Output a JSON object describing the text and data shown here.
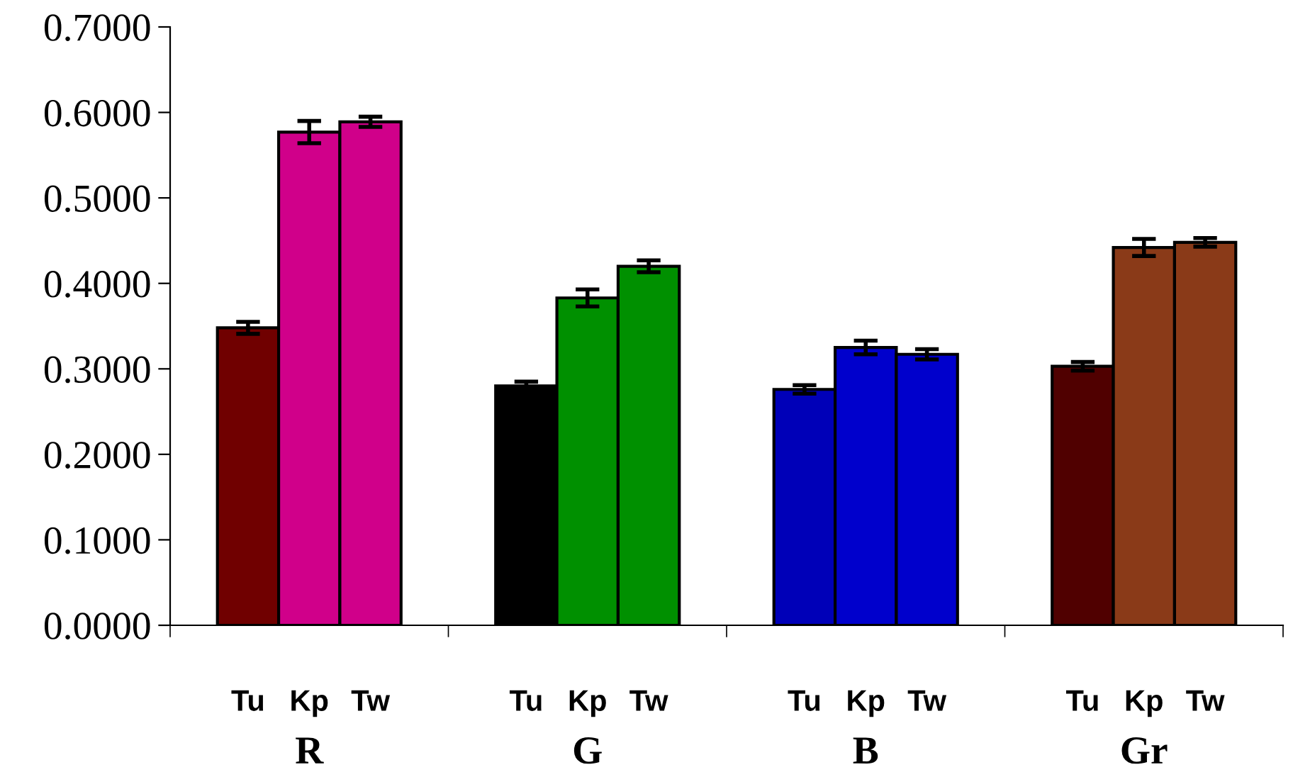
{
  "chart_data": {
    "type": "bar",
    "categories": [
      "R",
      "G",
      "B",
      "Gr"
    ],
    "series": [
      {
        "name": "Tu",
        "colors": [
          "#700000",
          "#000000",
          "#0000b8",
          "#500000"
        ],
        "values": [
          0.348,
          0.28,
          0.276,
          0.303
        ],
        "errors": [
          0.007,
          0.005,
          0.005,
          0.005
        ]
      },
      {
        "name": "Kp",
        "colors": [
          "#d0008a",
          "#009000",
          "#0000cc",
          "#8a3a18"
        ],
        "values": [
          0.577,
          0.383,
          0.325,
          0.442
        ],
        "errors": [
          0.013,
          0.01,
          0.008,
          0.01
        ]
      },
      {
        "name": "Tw",
        "colors": [
          "#d0008a",
          "#009000",
          "#0000cc",
          "#8a3a18"
        ],
        "values": [
          0.589,
          0.42,
          0.317,
          0.448
        ],
        "errors": [
          0.006,
          0.007,
          0.006,
          0.005
        ]
      }
    ],
    "ylim": [
      0,
      0.7
    ],
    "yticks": [
      {
        "value": 0,
        "label": "0.0000"
      },
      {
        "value": 0.1,
        "label": "0.1000"
      },
      {
        "value": 0.2,
        "label": "0.2000"
      },
      {
        "value": 0.3,
        "label": "0.3000"
      },
      {
        "value": 0.4,
        "label": "0.4000"
      },
      {
        "value": 0.5,
        "label": "0.5000"
      },
      {
        "value": 0.6,
        "label": "0.6000"
      },
      {
        "value": 0.7,
        "label": "0.7000"
      }
    ],
    "grid": false,
    "legend": false
  }
}
